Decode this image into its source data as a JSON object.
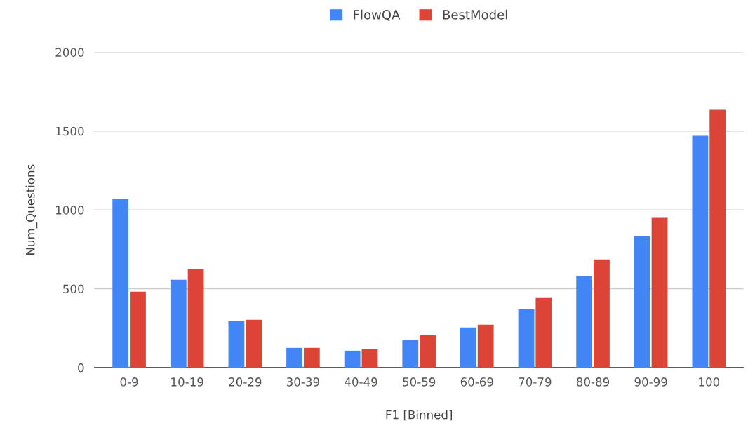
{
  "chart_data": {
    "type": "bar",
    "xlabel": "F1 [Binned]",
    "ylabel": "Num_Questions",
    "categories": [
      "0-9",
      "10-19",
      "20-29",
      "30-39",
      "40-49",
      "50-59",
      "60-69",
      "70-79",
      "80-89",
      "90-99",
      "100"
    ],
    "series": [
      {
        "name": "FlowQA",
        "color": "#4285f4",
        "values": [
          1069,
          557,
          294,
          125,
          107,
          175,
          254,
          370,
          579,
          833,
          1470
        ]
      },
      {
        "name": "BestModel",
        "color": "#db4437",
        "values": [
          481,
          624,
          303,
          125,
          116,
          205,
          272,
          441,
          686,
          949,
          1635
        ]
      }
    ],
    "ylim": [
      0,
      2000
    ],
    "yticks": [
      0,
      500,
      1000,
      1500,
      2000
    ],
    "grid": "y",
    "legend": "top"
  }
}
